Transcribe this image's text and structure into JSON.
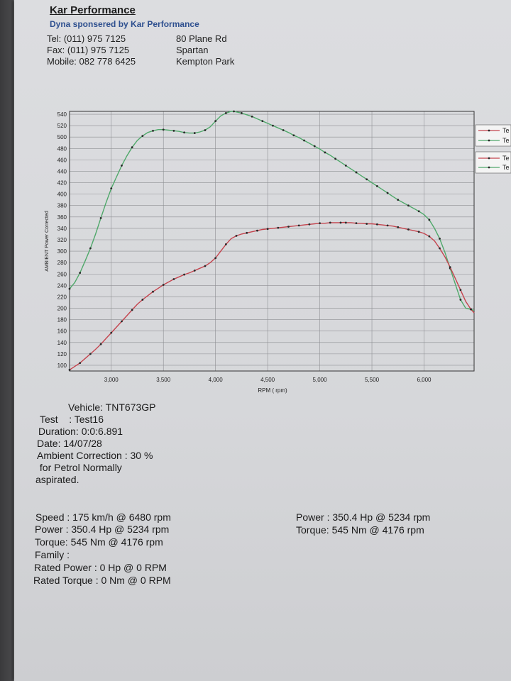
{
  "header": {
    "company": "Kar Performance",
    "sponsor": "Dyna sponsered by Kar Performance",
    "tel": "Tel: (011) 975 7125",
    "fax": "Fax: (011) 975 7125",
    "mobile": "Mobile: 082 778 6425",
    "address1": "80 Plane Rd",
    "address2": "Spartan",
    "address3": "Kempton Park"
  },
  "chart_data": {
    "type": "line",
    "xlabel": "RPM ( rpm)",
    "ylabel": "AMBIENT Power Corrected",
    "xlim": [
      2600,
      6480
    ],
    "ylim": [
      90,
      545
    ],
    "x_ticks": [
      3000,
      3500,
      4000,
      4500,
      5000,
      5500,
      6000
    ],
    "x_tick_labels": [
      "3,000",
      "3,500",
      "4,000",
      "4,500",
      "5,000",
      "5,500",
      "6,000"
    ],
    "y_ticks": [
      100,
      120,
      140,
      160,
      180,
      200,
      220,
      240,
      260,
      280,
      300,
      320,
      340,
      360,
      380,
      400,
      420,
      440,
      460,
      480,
      500,
      520,
      540
    ],
    "grid": true,
    "legend_placement": "right",
    "legend_labels": [
      "Te",
      "Te",
      "Te",
      "Te"
    ],
    "series": [
      {
        "color": "#4fa86a",
        "x": [
          2600,
          2650,
          2700,
          2750,
          2800,
          2850,
          2900,
          2950,
          3000,
          3050,
          3100,
          3150,
          3200,
          3250,
          3300,
          3350,
          3400,
          3450,
          3500,
          3550,
          3600,
          3650,
          3700,
          3750,
          3800,
          3850,
          3900,
          3950,
          4000,
          4050,
          4100,
          4150,
          4176,
          4200,
          4250,
          4300,
          4350,
          4400,
          4450,
          4500,
          4550,
          4600,
          4650,
          4700,
          4750,
          4800,
          4850,
          4900,
          4950,
          5000,
          5050,
          5100,
          5150,
          5200,
          5250,
          5300,
          5350,
          5400,
          5450,
          5500,
          5550,
          5600,
          5650,
          5700,
          5750,
          5800,
          5850,
          5900,
          5950,
          6000,
          6050,
          6100,
          6150,
          6200,
          6250,
          6300,
          6350,
          6400,
          6450,
          6480
        ],
        "values": [
          234,
          245,
          262,
          283,
          305,
          330,
          358,
          385,
          410,
          430,
          450,
          467,
          482,
          494,
          502,
          508,
          511,
          513,
          513,
          512,
          511,
          510,
          508,
          507,
          507,
          509,
          512,
          518,
          528,
          537,
          542,
          545,
          545,
          544,
          542,
          539,
          536,
          532,
          528,
          524,
          520,
          516,
          512,
          508,
          503,
          499,
          494,
          489,
          484,
          479,
          473,
          468,
          462,
          456,
          450,
          444,
          438,
          432,
          426,
          420,
          414,
          408,
          402,
          396,
          390,
          385,
          380,
          375,
          370,
          364,
          355,
          340,
          322,
          298,
          270,
          242,
          215,
          200,
          198,
          196
        ]
      },
      {
        "color": "#c4444e",
        "x": [
          2600,
          2650,
          2700,
          2750,
          2800,
          2850,
          2900,
          2950,
          3000,
          3050,
          3100,
          3150,
          3200,
          3250,
          3300,
          3350,
          3400,
          3450,
          3500,
          3550,
          3600,
          3650,
          3700,
          3750,
          3800,
          3850,
          3900,
          3950,
          4000,
          4050,
          4100,
          4150,
          4200,
          4250,
          4300,
          4350,
          4400,
          4450,
          4500,
          4550,
          4600,
          4650,
          4700,
          4750,
          4800,
          4850,
          4900,
          4950,
          5000,
          5050,
          5100,
          5150,
          5200,
          5234,
          5250,
          5300,
          5350,
          5400,
          5450,
          5500,
          5550,
          5600,
          5650,
          5700,
          5750,
          5800,
          5850,
          5900,
          5950,
          6000,
          6050,
          6100,
          6150,
          6200,
          6250,
          6300,
          6350,
          6400,
          6450,
          6480
        ],
        "values": [
          92,
          98,
          104,
          112,
          120,
          128,
          137,
          147,
          157,
          167,
          177,
          187,
          197,
          207,
          215,
          222,
          229,
          235,
          241,
          246,
          251,
          255,
          259,
          262,
          266,
          270,
          274,
          280,
          288,
          300,
          312,
          322,
          327,
          330,
          332,
          334,
          336,
          338,
          339,
          340,
          341,
          342,
          343,
          344,
          345,
          346,
          347,
          348,
          349,
          349,
          350,
          350,
          350,
          350.4,
          350,
          350,
          349,
          349,
          348,
          348,
          347,
          346,
          345,
          344,
          342,
          340,
          338,
          336,
          334,
          331,
          326,
          318,
          305,
          290,
          272,
          252,
          232,
          212,
          198,
          192
        ]
      }
    ]
  },
  "info_left": {
    "vehicle": "Vehicle: TNT673GP",
    "test": "Test    : Test16",
    "duration": "Duration: 0:0:6.891",
    "date": "Date: 14/07/28",
    "ambient": "Ambient Correction : 30 %",
    "petrol": " for Petrol Normally",
    "aspirated": "aspirated."
  },
  "results_left": {
    "speed": "Speed : 175 km/h @ 6480 rpm",
    "power": "Power : 350.4 Hp @ 5234 rpm",
    "torque": "Torque: 545 Nm @ 4176 rpm",
    "family": "Family :",
    "rated_power": "Rated Power : 0 Hp @ 0 RPM",
    "rated_torque": "Rated Torque : 0 Nm @ 0 RPM"
  },
  "results_right": {
    "power": "Power : 350.4 Hp @ 5234 rpm",
    "torque": "Torque: 545 Nm @ 4176 rpm"
  }
}
